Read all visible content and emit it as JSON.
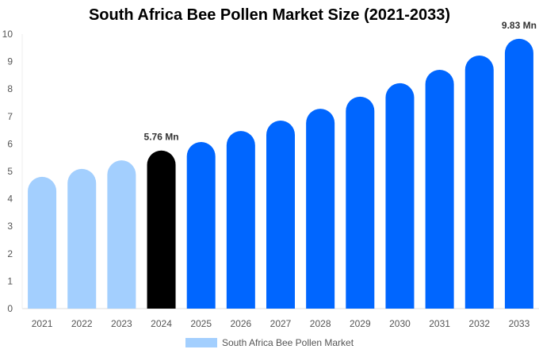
{
  "chart_data": {
    "type": "bar",
    "title": "South Africa Bee Pollen Market Size (2021-2033)",
    "categories": [
      "2021",
      "2022",
      "2023",
      "2024",
      "2025",
      "2026",
      "2027",
      "2028",
      "2029",
      "2030",
      "2031",
      "2032",
      "2033"
    ],
    "series": [
      {
        "name": "South Africa Bee Pollen Market",
        "values": [
          4.8,
          5.09,
          5.4,
          5.76,
          6.07,
          6.47,
          6.85,
          7.28,
          7.72,
          8.21,
          8.7,
          9.22,
          9.83
        ]
      }
    ],
    "data_labels": {
      "2024": "5.76 Mn",
      "2033": "9.83 Mn"
    },
    "ylim": [
      0,
      10
    ],
    "yticks": [
      0,
      1,
      2,
      3,
      4,
      5,
      6,
      7,
      8,
      9,
      10
    ],
    "grid": false,
    "legend": "bottom",
    "colors": {
      "historical": "#a3cffe",
      "base_year": "#000000",
      "forecast": "#0066ff"
    }
  }
}
